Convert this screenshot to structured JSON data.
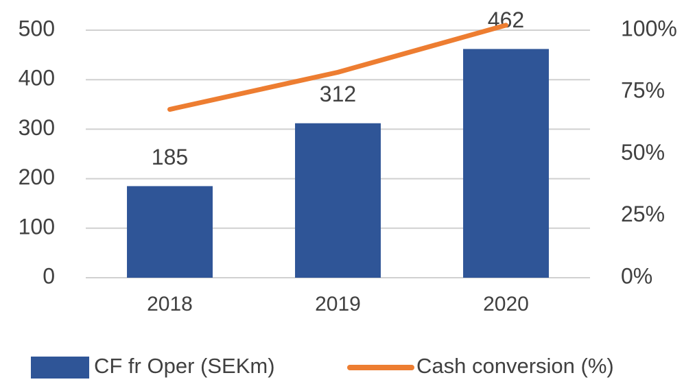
{
  "chart_data": {
    "type": "bar",
    "categories": [
      "2018",
      "2019",
      "2020"
    ],
    "series": [
      {
        "name": "CF fr Oper (SEKm)",
        "type": "bar",
        "color": "#2f5597",
        "values": [
          185,
          312,
          462
        ]
      },
      {
        "name": "Cash conversion (%)",
        "type": "line",
        "axis": "y2",
        "color": "#ed7d31",
        "values": [
          68,
          83,
          102
        ]
      }
    ],
    "ylim": [
      0,
      500
    ],
    "yticks": [
      0,
      100,
      200,
      300,
      400,
      500
    ],
    "y2lim": [
      0,
      100
    ],
    "y2ticks": [
      {
        "value": 0,
        "label": "0%"
      },
      {
        "value": 25,
        "label": "25%"
      },
      {
        "value": 50,
        "label": "50%"
      },
      {
        "value": 75,
        "label": "75%"
      },
      {
        "value": 100,
        "label": "100%"
      }
    ],
    "grid": true,
    "legend": "bottom"
  }
}
